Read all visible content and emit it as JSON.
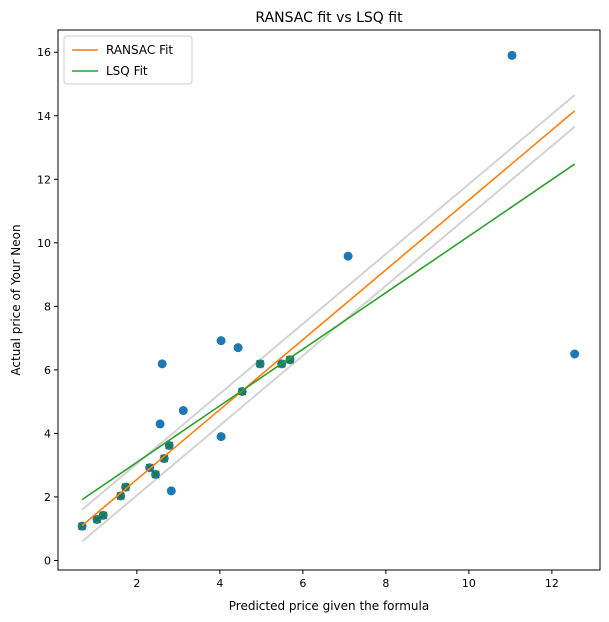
{
  "chart_data": {
    "type": "scatter",
    "title": "RANSAC fit vs LSQ fit",
    "xlabel": "Predicted price given the formula",
    "ylabel": "Actual price of Your Neon",
    "xlim": [
      0.1,
      13.16
    ],
    "ylim": [
      -0.3,
      16.7
    ],
    "xticks": [
      2,
      4,
      6,
      8,
      10,
      12
    ],
    "yticks": [
      0,
      2,
      4,
      6,
      8,
      10,
      12,
      14,
      16
    ],
    "grid": false,
    "legend_position": "top-left",
    "points": [
      [
        0.68,
        1.08
      ],
      [
        1.04,
        1.29
      ],
      [
        1.19,
        1.42
      ],
      [
        1.61,
        2.03
      ],
      [
        1.73,
        2.31
      ],
      [
        2.31,
        2.92
      ],
      [
        2.45,
        2.71
      ],
      [
        2.66,
        3.21
      ],
      [
        2.78,
        3.62
      ],
      [
        2.83,
        2.19
      ],
      [
        2.56,
        4.3
      ],
      [
        3.12,
        4.72
      ],
      [
        2.61,
        6.19
      ],
      [
        4.03,
        3.9
      ],
      [
        4.03,
        6.92
      ],
      [
        4.44,
        6.7
      ],
      [
        4.54,
        5.32
      ],
      [
        4.97,
        6.19
      ],
      [
        5.49,
        6.19
      ],
      [
        5.69,
        6.32
      ],
      [
        7.09,
        9.58
      ],
      [
        11.04,
        15.9
      ],
      [
        12.55,
        6.5
      ]
    ],
    "inliers": [
      0,
      1,
      2,
      3,
      4,
      5,
      6,
      7,
      8,
      16,
      17,
      18,
      19
    ],
    "series": [
      {
        "name": "RANSAC Fit",
        "slope": 1.1,
        "intercept": 0.35,
        "color": "#ff7f0e"
      },
      {
        "name": "LSQ Fit",
        "slope": 0.89,
        "intercept": 1.31,
        "color": "#2ca02c"
      }
    ],
    "band": {
      "offset": 0.5,
      "color": "#d3d3d3"
    },
    "fit_x_range": [
      0.68,
      12.55
    ],
    "point_color": "#1f77b4"
  }
}
